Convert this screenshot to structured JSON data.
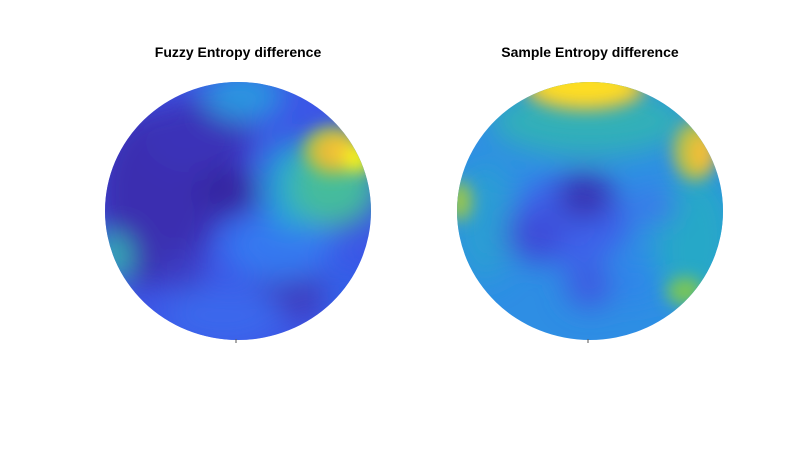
{
  "chart_data": [
    {
      "type": "heatmap",
      "title": "Fuzzy Entropy difference",
      "colormap": [
        "#3e26a8",
        "#4352f5",
        "#2f7ff6",
        "#1da8d9",
        "#33c0a3",
        "#8cc64e",
        "#e8b93b",
        "#fedb23",
        "#f9fb0e"
      ],
      "scale": [
        0,
        1
      ],
      "hotspots": [
        {
          "region": "upper-right",
          "level": 1.0
        },
        {
          "region": "far-right",
          "level": 0.95
        },
        {
          "region": "top-center",
          "level": 0.45
        },
        {
          "region": "lower-left-edge",
          "level": 0.45
        }
      ]
    },
    {
      "type": "heatmap",
      "title": "Sample Entropy difference",
      "colormap": [
        "#3e26a8",
        "#4352f5",
        "#2f7ff6",
        "#1da8d9",
        "#33c0a3",
        "#8cc64e",
        "#e8b93b",
        "#fedb23",
        "#f9fb0e"
      ],
      "scale": [
        0,
        1
      ],
      "hotspots": [
        {
          "region": "top-center",
          "level": 1.0
        },
        {
          "region": "right",
          "level": 0.85
        },
        {
          "region": "lower-right",
          "level": 0.65
        },
        {
          "region": "left-edge",
          "level": 0.6
        }
      ]
    }
  ]
}
